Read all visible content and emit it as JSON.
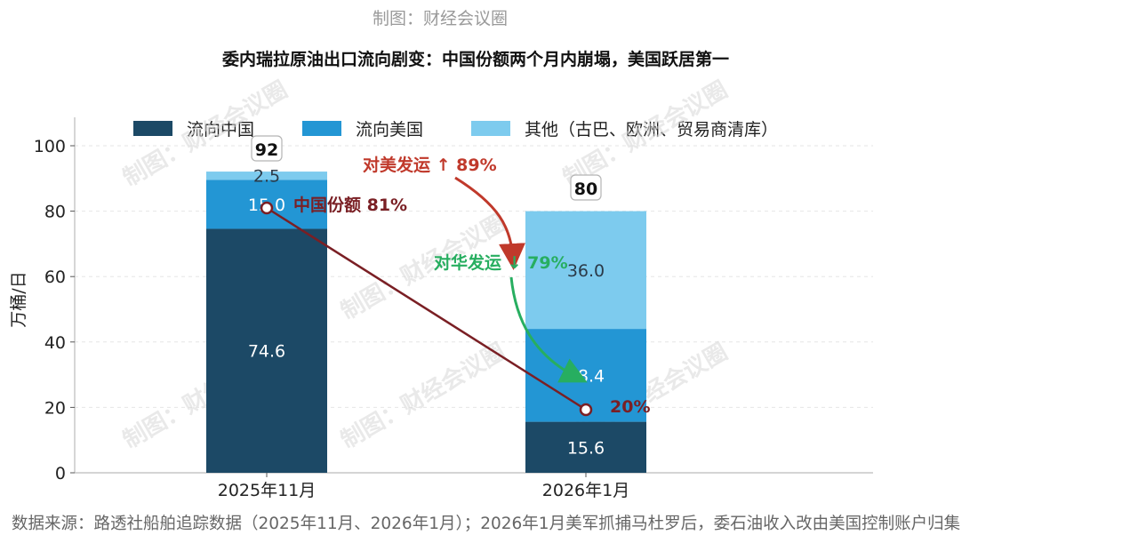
{
  "credit": "制图：财经会议圈",
  "title": "委内瑞拉原油出口流向剧变：中国份额两个月内崩塌，美国跃居第一",
  "watermark": "制图：财经会议圈",
  "source": "数据来源：路透社船舶追踪数据（2025年11月、2026年1月）；2026年1月美军抓捕马杜罗后，委石油收入改由美国控制账户归集",
  "colors": {
    "china": "#1c4966",
    "usa": "#2396d4",
    "other": "#7dcbee",
    "china_share_line": "#7a1f24",
    "usa_arrow": "#c0392b",
    "china_arrow": "#27ae60"
  },
  "chart_data": {
    "type": "bar",
    "stacked": true,
    "categories": [
      "2025年11月",
      "2026年1月"
    ],
    "series": [
      {
        "name": "流向中国",
        "values": [
          74.6,
          15.6
        ]
      },
      {
        "name": "流向美国",
        "values": [
          15.0,
          28.4
        ]
      },
      {
        "name": "其他（古巴、欧洲、贸易商清库）",
        "values": [
          2.5,
          36.0
        ]
      }
    ],
    "totals": [
      "92",
      "80"
    ],
    "value_labels": [
      [
        "74.6",
        "15.0",
        "2.5"
      ],
      [
        "15.6",
        "28.4",
        "36.0"
      ]
    ],
    "ylabel": "万桶/日",
    "ylim": [
      0,
      105
    ],
    "yticks": [
      0,
      20,
      40,
      60,
      80,
      100
    ],
    "grid": true,
    "legend": "top",
    "annotations": {
      "china_share_start": "中国份额 81%",
      "china_share_end": "20%",
      "usa_change": "对美发运 ↑ 89%",
      "china_change": "对华发运 ↓ 79%"
    }
  }
}
